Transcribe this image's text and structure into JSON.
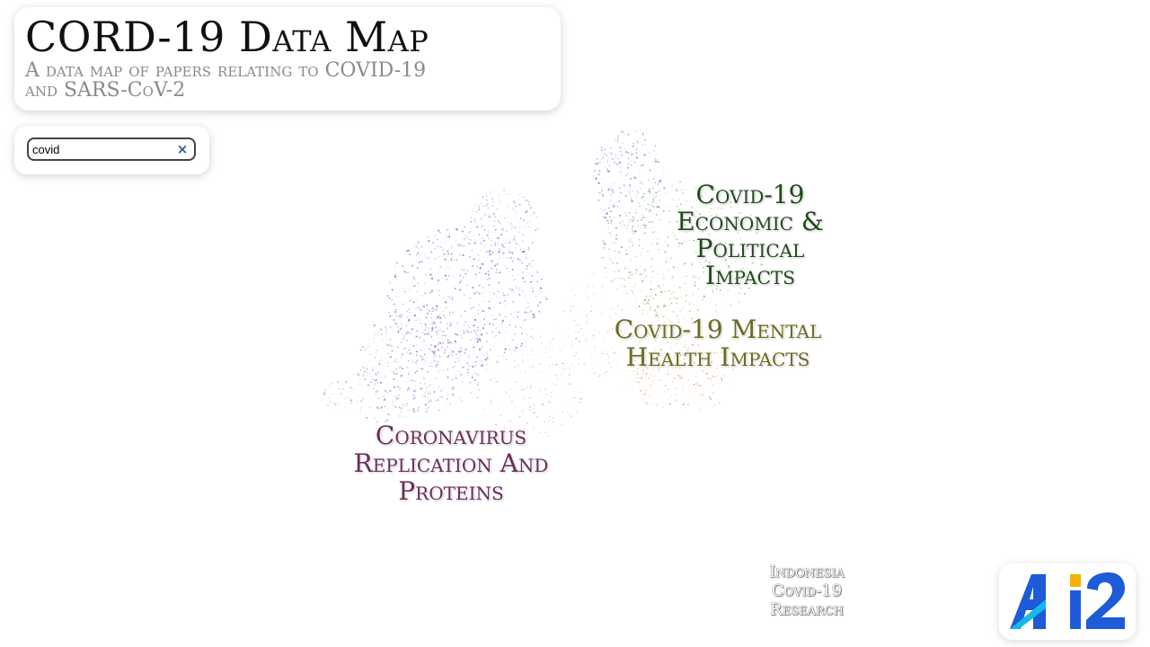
{
  "header": {
    "title": "CORD-19 Data Map",
    "subtitle_line1": "A data map of papers relating to COVID-19",
    "subtitle_line2": "and SARS-CoV-2"
  },
  "search": {
    "value": "covid",
    "clear_icon": "close-icon",
    "clear_glyph": "×"
  },
  "map": {
    "cluster_labels": {
      "economic": [
        "Covid-19",
        "Economic &",
        "Political",
        "Impacts"
      ],
      "mental": [
        "Covid-19 Mental",
        "Health Impacts"
      ],
      "replication": [
        "Coronavirus",
        "Replication And",
        "Proteins"
      ],
      "indonesia": [
        "Indonesia",
        "Covid-19",
        "Research"
      ]
    },
    "colors": {
      "economic": "#1f4a1a",
      "mental": "#6b6a1e",
      "replication": "#6a2d5c",
      "indonesia": "#ffffff",
      "blue_points": "#4b5fc4",
      "purple_points": "#9a5cc7",
      "green_points": "#5f9e3e",
      "orange_points": "#e49a5a"
    }
  },
  "logo": {
    "text": "AI2",
    "colors": {
      "blue": "#1e5bd8",
      "cyan": "#18b7e6",
      "yellow": "#f5b400"
    }
  }
}
